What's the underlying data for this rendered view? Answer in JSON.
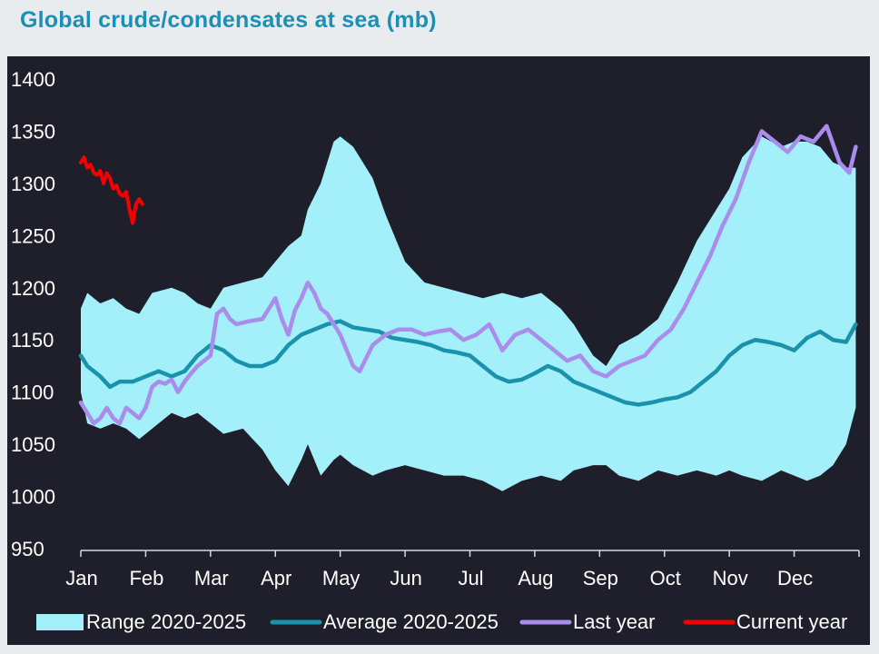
{
  "chart_data": {
    "type": "line",
    "title": "Global crude/condensates at sea (mb)",
    "xlabel": "",
    "ylabel": "",
    "ylim": [
      950,
      1400
    ],
    "yticks": [
      950,
      1000,
      1050,
      1100,
      1150,
      1200,
      1250,
      1300,
      1350,
      1400
    ],
    "categories": [
      "Jan",
      "Feb",
      "Mar",
      "Apr",
      "May",
      "Jun",
      "Jul",
      "Aug",
      "Sep",
      "Oct",
      "Nov",
      "Dec"
    ],
    "legend_position": "bottom",
    "series": [
      {
        "name": "Range 2020-2025",
        "kind": "band",
        "color": "#a4f0fa",
        "x": [
          0,
          0.1,
          0.3,
          0.5,
          0.7,
          0.9,
          1.1,
          1.4,
          1.6,
          1.8,
          2.0,
          2.2,
          2.5,
          2.8,
          3.0,
          3.2,
          3.4,
          3.5,
          3.7,
          3.9,
          4.0,
          4.2,
          4.5,
          4.7,
          5.0,
          5.3,
          5.6,
          5.9,
          6.2,
          6.5,
          6.8,
          7.1,
          7.4,
          7.6,
          7.9,
          8.1,
          8.3,
          8.6,
          8.9,
          9.2,
          9.5,
          9.8,
          10.0,
          10.2,
          10.5,
          10.8,
          11.0,
          11.2,
          11.4,
          11.6,
          11.8,
          11.95
        ],
        "upper": [
          1180,
          1195,
          1185,
          1190,
          1180,
          1175,
          1195,
          1200,
          1195,
          1185,
          1180,
          1200,
          1205,
          1210,
          1225,
          1240,
          1250,
          1275,
          1300,
          1340,
          1345,
          1335,
          1305,
          1270,
          1225,
          1205,
          1200,
          1195,
          1190,
          1195,
          1190,
          1195,
          1180,
          1165,
          1135,
          1125,
          1145,
          1155,
          1170,
          1205,
          1245,
          1275,
          1295,
          1325,
          1345,
          1335,
          1340,
          1340,
          1335,
          1320,
          1315,
          1315
        ],
        "lower": [
          1100,
          1070,
          1065,
          1070,
          1065,
          1055,
          1065,
          1080,
          1075,
          1080,
          1070,
          1060,
          1065,
          1045,
          1025,
          1010,
          1035,
          1050,
          1020,
          1035,
          1040,
          1030,
          1020,
          1025,
          1030,
          1025,
          1020,
          1020,
          1015,
          1005,
          1015,
          1020,
          1015,
          1025,
          1030,
          1030,
          1020,
          1015,
          1025,
          1020,
          1025,
          1020,
          1025,
          1020,
          1015,
          1025,
          1020,
          1015,
          1020,
          1030,
          1050,
          1085
        ]
      },
      {
        "name": "Average 2020-2025",
        "kind": "line",
        "color": "#1a92ab",
        "x": [
          0,
          0.1,
          0.3,
          0.45,
          0.6,
          0.8,
          1.0,
          1.2,
          1.4,
          1.6,
          1.8,
          2.0,
          2.2,
          2.4,
          2.6,
          2.8,
          3.0,
          3.2,
          3.4,
          3.6,
          3.8,
          4.0,
          4.2,
          4.4,
          4.6,
          4.8,
          5.0,
          5.2,
          5.4,
          5.6,
          5.8,
          6.0,
          6.2,
          6.4,
          6.6,
          6.8,
          7.0,
          7.2,
          7.4,
          7.6,
          7.8,
          8.0,
          8.2,
          8.4,
          8.6,
          8.8,
          9.0,
          9.2,
          9.4,
          9.6,
          9.8,
          10.0,
          10.2,
          10.4,
          10.6,
          10.8,
          11.0,
          11.2,
          11.4,
          11.6,
          11.8,
          11.95
        ],
        "values": [
          1135,
          1125,
          1115,
          1105,
          1110,
          1110,
          1115,
          1120,
          1115,
          1120,
          1135,
          1145,
          1140,
          1130,
          1125,
          1125,
          1130,
          1145,
          1155,
          1160,
          1165,
          1168,
          1162,
          1160,
          1158,
          1152,
          1150,
          1148,
          1145,
          1140,
          1138,
          1135,
          1125,
          1115,
          1110,
          1112,
          1118,
          1125,
          1120,
          1110,
          1105,
          1100,
          1095,
          1090,
          1088,
          1090,
          1093,
          1095,
          1100,
          1110,
          1120,
          1135,
          1145,
          1150,
          1148,
          1145,
          1140,
          1152,
          1158,
          1150,
          1148,
          1165
        ]
      },
      {
        "name": "Last year",
        "kind": "line",
        "color": "#a98ceb",
        "x": [
          0,
          0.1,
          0.2,
          0.3,
          0.4,
          0.5,
          0.6,
          0.7,
          0.8,
          0.9,
          1.0,
          1.1,
          1.2,
          1.3,
          1.4,
          1.5,
          1.6,
          1.7,
          1.8,
          2.0,
          2.1,
          2.2,
          2.3,
          2.4,
          2.6,
          2.8,
          2.9,
          3.0,
          3.1,
          3.2,
          3.3,
          3.4,
          3.5,
          3.6,
          3.7,
          3.8,
          3.9,
          4.0,
          4.1,
          4.2,
          4.3,
          4.5,
          4.7,
          4.9,
          5.1,
          5.3,
          5.5,
          5.7,
          5.9,
          6.1,
          6.3,
          6.5,
          6.7,
          6.9,
          7.1,
          7.3,
          7.5,
          7.7,
          7.9,
          8.1,
          8.3,
          8.5,
          8.7,
          8.9,
          9.1,
          9.3,
          9.5,
          9.7,
          9.9,
          10.1,
          10.3,
          10.5,
          10.7,
          10.9,
          11.1,
          11.3,
          11.5,
          11.7,
          11.85,
          11.95
        ],
        "values": [
          1090,
          1080,
          1070,
          1075,
          1085,
          1075,
          1070,
          1085,
          1080,
          1075,
          1085,
          1105,
          1110,
          1108,
          1112,
          1100,
          1110,
          1118,
          1125,
          1135,
          1175,
          1180,
          1170,
          1165,
          1168,
          1170,
          1180,
          1190,
          1170,
          1155,
          1178,
          1190,
          1205,
          1195,
          1180,
          1175,
          1165,
          1155,
          1140,
          1125,
          1120,
          1145,
          1155,
          1160,
          1160,
          1155,
          1158,
          1160,
          1150,
          1155,
          1165,
          1140,
          1155,
          1160,
          1150,
          1140,
          1130,
          1135,
          1120,
          1115,
          1125,
          1130,
          1135,
          1150,
          1160,
          1180,
          1205,
          1230,
          1260,
          1285,
          1320,
          1350,
          1340,
          1330,
          1345,
          1340,
          1355,
          1320,
          1310,
          1335
        ]
      },
      {
        "name": "Current year",
        "kind": "line",
        "color": "#f50000",
        "x": [
          0,
          0.05,
          0.1,
          0.15,
          0.2,
          0.25,
          0.3,
          0.35,
          0.4,
          0.45,
          0.5,
          0.55,
          0.6,
          0.65,
          0.7,
          0.75,
          0.8,
          0.85,
          0.9,
          0.95
        ],
        "values": [
          1320,
          1325,
          1315,
          1318,
          1310,
          1308,
          1312,
          1300,
          1310,
          1305,
          1295,
          1298,
          1290,
          1288,
          1292,
          1275,
          1262,
          1280,
          1285,
          1280
        ]
      }
    ]
  }
}
